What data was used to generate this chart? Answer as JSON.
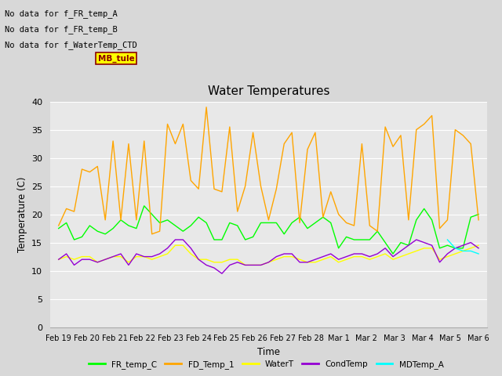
{
  "title": "Water Temperatures",
  "xlabel": "Time",
  "ylabel": "Temperature (C)",
  "ylim": [
    0,
    40
  ],
  "yticks": [
    0,
    5,
    10,
    15,
    20,
    25,
    30,
    35,
    40
  ],
  "background_color": "#d8d8d8",
  "plot_bg_color": "#e8e8e8",
  "annotations": [
    "No data for f_FR_temp_A",
    "No data for f_FR_temp_B",
    "No data for f_WaterTemp_CTD"
  ],
  "mb_tule_label": "MB_tule",
  "legend": [
    "FR_temp_C",
    "FD_Temp_1",
    "WaterT",
    "CondTemp",
    "MDTemp_A"
  ],
  "legend_colors": [
    "#00ff00",
    "#ffa500",
    "#ffff00",
    "#9400d3",
    "#00ffff"
  ],
  "xtick_labels": [
    "Feb 19",
    "Feb 20",
    "Feb 21",
    "Feb 22",
    "Feb 23",
    "Feb 24",
    "Feb 25",
    "Feb 26",
    "Feb 27",
    "Feb 28",
    "Mar 1",
    "Mar 2",
    "Mar 3",
    "Mar 4",
    "Mar 5",
    "Mar 6"
  ],
  "FR_temp_C": [
    17.5,
    18.5,
    15.5,
    16.0,
    18.0,
    17.0,
    16.5,
    17.5,
    19.0,
    18.0,
    17.5,
    21.5,
    20.0,
    18.5,
    19.0,
    18.0,
    17.0,
    18.0,
    19.5,
    18.5,
    15.5,
    15.5,
    18.5,
    18.0,
    15.5,
    16.0,
    18.5,
    18.5,
    18.5,
    16.5,
    18.5,
    19.5,
    17.5,
    18.5,
    19.5,
    18.5,
    14.0,
    16.0,
    15.5,
    15.5,
    15.5,
    17.0,
    15.0,
    13.0,
    15.0,
    14.5,
    19.0,
    21.0,
    19.0,
    14.0,
    14.5,
    14.0,
    14.0,
    19.5,
    20.0
  ],
  "FD_Temp_1": [
    18.0,
    21.0,
    20.5,
    28.0,
    27.5,
    28.5,
    19.0,
    33.0,
    19.0,
    32.5,
    19.0,
    33.0,
    16.5,
    17.0,
    36.0,
    32.5,
    36.0,
    26.0,
    24.5,
    39.0,
    24.5,
    24.0,
    35.5,
    20.5,
    25.0,
    34.5,
    25.0,
    19.0,
    24.5,
    32.5,
    34.5,
    18.5,
    31.5,
    34.5,
    19.5,
    24.0,
    20.0,
    18.5,
    18.0,
    32.5,
    18.0,
    17.0,
    35.5,
    32.0,
    34.0,
    19.0,
    35.0,
    36.0,
    37.5,
    17.5,
    19.0,
    35.0,
    34.0,
    32.5,
    19.0
  ],
  "WaterT": [
    12.0,
    12.5,
    12.0,
    12.5,
    12.5,
    11.5,
    12.0,
    12.5,
    12.5,
    11.5,
    12.5,
    12.5,
    12.0,
    12.5,
    13.0,
    14.5,
    14.5,
    13.0,
    12.0,
    12.0,
    11.5,
    11.5,
    12.0,
    12.0,
    11.0,
    11.0,
    11.0,
    11.5,
    12.0,
    12.5,
    12.5,
    12.0,
    11.5,
    11.5,
    12.0,
    12.5,
    11.5,
    12.0,
    12.5,
    12.5,
    12.0,
    12.5,
    13.0,
    12.0,
    12.5,
    13.0,
    13.5,
    14.0,
    14.0,
    12.0,
    12.5,
    13.0,
    13.5,
    14.0,
    14.5
  ],
  "CondTemp": [
    12.0,
    13.0,
    11.0,
    12.0,
    12.0,
    11.5,
    12.0,
    12.5,
    13.0,
    11.0,
    13.0,
    12.5,
    12.5,
    13.0,
    14.0,
    15.5,
    15.5,
    14.0,
    12.0,
    11.0,
    10.5,
    9.5,
    11.0,
    11.5,
    11.0,
    11.0,
    11.0,
    11.5,
    12.5,
    13.0,
    13.0,
    11.5,
    11.5,
    12.0,
    12.5,
    13.0,
    12.0,
    12.5,
    13.0,
    13.0,
    12.5,
    13.0,
    14.0,
    12.5,
    13.5,
    14.5,
    15.5,
    15.0,
    14.5,
    11.5,
    13.0,
    14.0,
    14.5,
    15.0,
    14.0
  ],
  "MDTemp_A": [
    null,
    null,
    null,
    null,
    null,
    null,
    null,
    null,
    null,
    null,
    null,
    null,
    null,
    null,
    null,
    null,
    null,
    null,
    null,
    null,
    null,
    null,
    null,
    null,
    null,
    null,
    null,
    null,
    null,
    null,
    null,
    null,
    null,
    null,
    null,
    null,
    null,
    null,
    null,
    null,
    null,
    null,
    null,
    null,
    null,
    null,
    null,
    null,
    null,
    null,
    15.5,
    14.0,
    13.5,
    13.5,
    13.0
  ]
}
